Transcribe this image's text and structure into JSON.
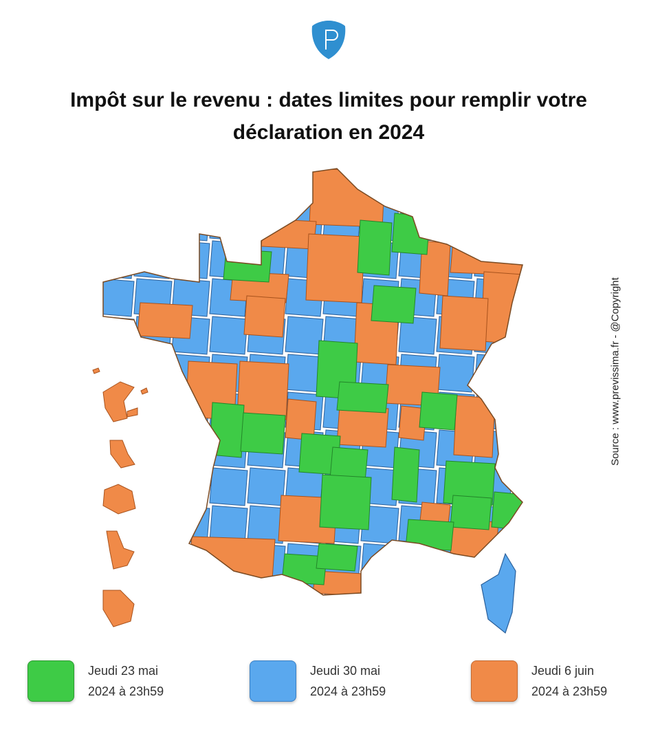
{
  "header": {
    "logo_letter": "P",
    "title_line1": "Impôt sur le revenu : dates limites  pour remplir votre",
    "title_line2": "déclaration en 2024"
  },
  "source": "Source : www.previssima.fr - @Copyright",
  "colors": {
    "green": "#3ecb46",
    "blue": "#5aa8ee",
    "orange": "#f08a48",
    "logo": "#2f8fd0"
  },
  "legend": [
    {
      "line1": "Jeudi 23 mai",
      "line2": "2024 à 23h59",
      "color": "#3ecb46"
    },
    {
      "line1": "Jeudi 30 mai",
      "line2": "2024 à 23h59",
      "color": "#5aa8ee"
    },
    {
      "line1": "Jeudi 6 juin",
      "line2": "2024 à 23h59",
      "color": "#f08a48"
    }
  ]
}
